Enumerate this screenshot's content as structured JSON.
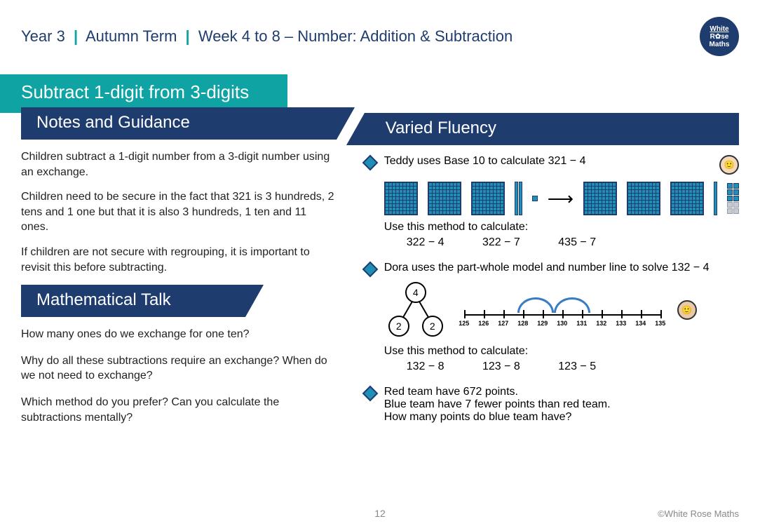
{
  "header": {
    "year": "Year 3",
    "term": "Autumn Term",
    "week": "Week 4 to 8 – Number: Addition & Subtraction",
    "logo_lines": [
      "White",
      "R✿se",
      "Maths"
    ],
    "logo_bg": "#1f3c6e"
  },
  "topic_title": "Subtract 1-digit from 3-digits",
  "notes": {
    "heading": "Notes and Guidance",
    "paras": [
      "Children subtract a 1-digit number from a 3-digit number using an exchange.",
      "Children need to be secure in the fact that 321 is 3 hundreds, 2 tens and 1 one but that it is also 3 hundreds, 1 ten and 11 ones.",
      "If children are not secure with regrouping, it is important to revisit this before subtracting."
    ]
  },
  "talk": {
    "heading": "Mathematical Talk",
    "questions": [
      "How many ones do we exchange for one ten?",
      "Why do all these subtractions require an exchange? When do we not need to exchange?",
      "Which method do you prefer? Can you calculate the subtractions mentally?"
    ]
  },
  "fluency": {
    "heading": "Varied Fluency",
    "q1": {
      "prompt": "Teddy uses Base 10 to calculate 321 − 4",
      "sub": "Use this method to calculate:",
      "calcs": [
        "322 − 4",
        "322 − 7",
        "435 − 7"
      ]
    },
    "q2": {
      "prompt": "Dora uses the part-whole model and number line to solve 132 − 4",
      "pw": {
        "whole": "4",
        "p1": "2",
        "p2": "2"
      },
      "nl_labels": [
        "125",
        "126",
        "127",
        "128",
        "129",
        "130",
        "131",
        "132",
        "133",
        "134",
        "135"
      ],
      "sub": "Use this method to calculate:",
      "calcs": [
        "132 − 8",
        "123 − 8",
        "123 − 5"
      ]
    },
    "q3": {
      "lines": [
        "Red team have 672 points.",
        "Blue team have 7 fewer points than red team.",
        "How many points do blue team have?"
      ]
    }
  },
  "footer": {
    "page": "12",
    "copyright": "©White Rose Maths"
  },
  "colors": {
    "teal": "#0fa3a3",
    "navy": "#1f3c6e",
    "blue_block": "#1f8fb8",
    "arc": "#3a7cc4"
  }
}
